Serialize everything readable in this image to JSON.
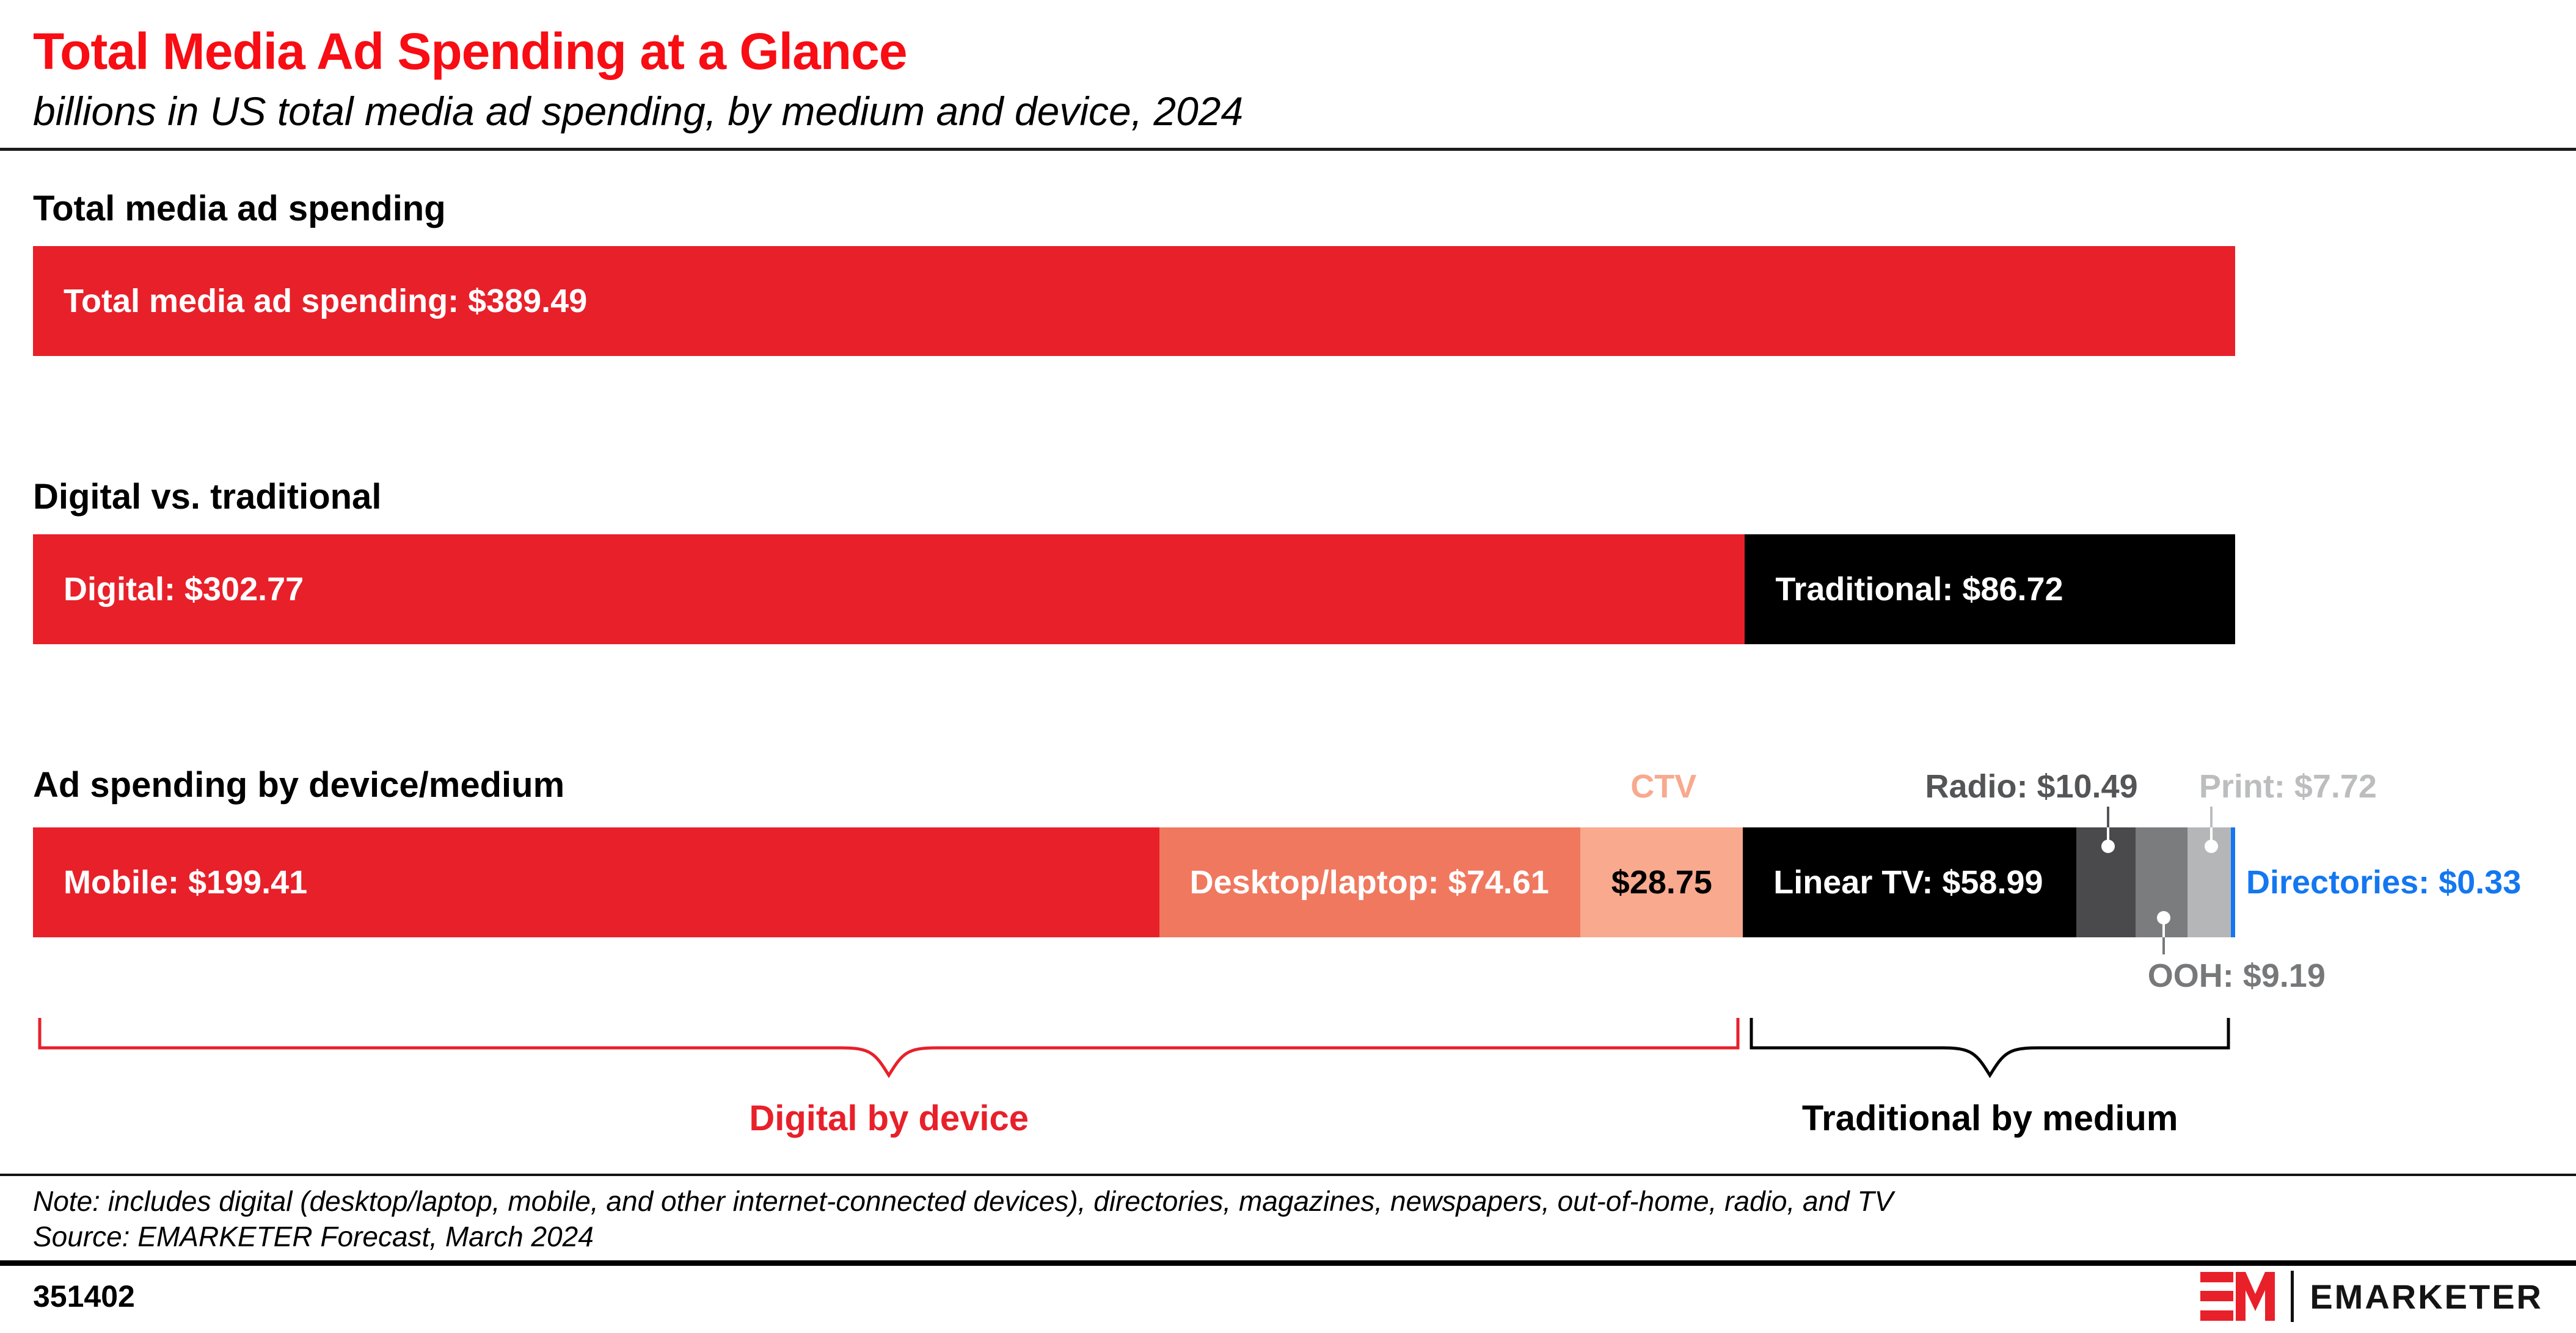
{
  "header": {
    "title": "Total Media Ad Spending at a Glance",
    "subtitle": "billions in US total media ad spending, by medium and device, 2024",
    "title_color": "#f70d13"
  },
  "chart_data": {
    "type": "bar",
    "title": "Total Media Ad Spending at a Glance",
    "subtitle": "billions in US total media ad spending, by medium and device, 2024",
    "unit": "billions of US dollars",
    "total": 389.49,
    "rows": [
      {
        "label": "Total media ad spending",
        "segments": [
          {
            "name": "Total media ad spending",
            "value": 389.49,
            "display": "Total media ad spending: $389.49",
            "color": "#e8202a",
            "text_color": "#ffffff"
          }
        ]
      },
      {
        "label": "Digital vs. traditional",
        "segments": [
          {
            "name": "Digital",
            "value": 302.77,
            "display": "Digital: $302.77",
            "color": "#e8202a",
            "text_color": "#ffffff"
          },
          {
            "name": "Traditional",
            "value": 86.72,
            "display": "Traditional: $86.72",
            "color": "#000000",
            "text_color": "#ffffff"
          }
        ]
      },
      {
        "label": "Ad spending by device/medium",
        "segments": [
          {
            "name": "Mobile",
            "value": 199.41,
            "display": "Mobile: $199.41",
            "color": "#e8202a",
            "text_color": "#ffffff"
          },
          {
            "name": "Desktop/laptop",
            "value": 74.61,
            "display": "Desktop/laptop: $74.61",
            "color": "#f0785f",
            "text_color": "#ffffff"
          },
          {
            "name": "CTV",
            "value": 28.75,
            "display": "$28.75",
            "color": "#f8a98e",
            "text_color": "#000000",
            "label_align": "center",
            "callout": {
              "text": "CTV",
              "position": "above",
              "color": "#f8a98e",
              "leader": false
            }
          },
          {
            "name": "Linear TV",
            "value": 58.99,
            "display": "Linear TV: $58.99",
            "color": "#000000",
            "text_color": "#ffffff"
          },
          {
            "name": "Radio",
            "value": 10.49,
            "color": "#4a4a4c",
            "callout": {
              "text": "Radio: $10.49",
              "position": "above",
              "color": "#545557",
              "leader": true
            }
          },
          {
            "name": "OOH",
            "value": 9.19,
            "color": "#7b7c7e",
            "callout": {
              "text": "OOH: $9.19",
              "position": "below",
              "color": "#77787a",
              "leader": true
            }
          },
          {
            "name": "Print",
            "value": 7.72,
            "color": "#b5b6b8",
            "callout": {
              "text": "Print: $7.72",
              "position": "above",
              "color": "#bcbdbf",
              "leader": true
            }
          },
          {
            "name": "Directories",
            "value": 0.33,
            "color": "#1477f0",
            "callout": {
              "text": "Directories: $0.33",
              "position": "right",
              "color": "#1477f0",
              "leader": false
            }
          }
        ]
      }
    ],
    "braces": [
      {
        "label": "Digital by device",
        "color": "#e8202a",
        "from": "Mobile",
        "to": "CTV",
        "value_span": 302.77
      },
      {
        "label": "Traditional by medium",
        "color": "#000000",
        "from": "Linear TV",
        "to": "Directories",
        "value_span": 86.72
      }
    ]
  },
  "footnote": {
    "note": "Note: includes digital (desktop/laptop, mobile, and other internet-connected devices), directories, magazines, newspapers, out-of-home, radio, and TV",
    "source": "Source: EMARKETER Forecast, March 2024"
  },
  "footer": {
    "chart_id": "351402",
    "brand": "EMARKETER",
    "logo_mark": "EM",
    "brand_red": "#e8202a"
  }
}
